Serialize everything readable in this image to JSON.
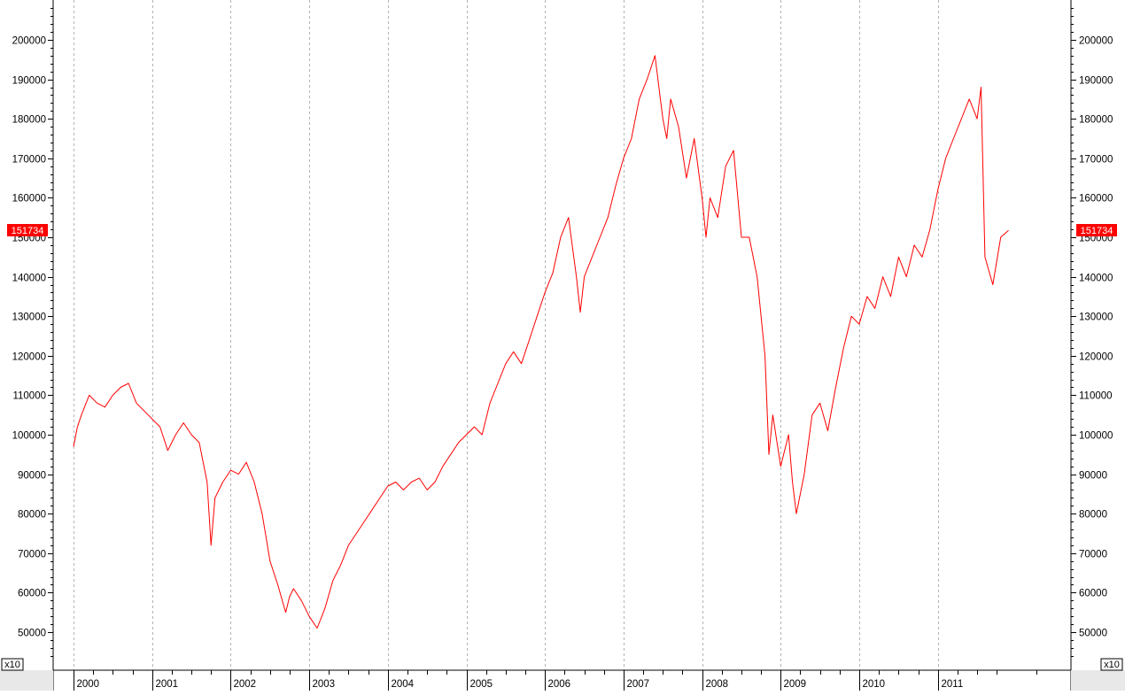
{
  "chart_data": {
    "type": "line",
    "title": "",
    "xlabel": "",
    "ylabel": "",
    "scale_badge": "x10",
    "last_value_label": "151734",
    "last_value": 151734,
    "x_tick_labels": [
      "2000",
      "2001",
      "2002",
      "2003",
      "2004",
      "2005",
      "2006",
      "2007",
      "2008",
      "2009",
      "2010",
      "2011"
    ],
    "y_tick_labels": [
      "50000",
      "60000",
      "70000",
      "80000",
      "90000",
      "100000",
      "110000",
      "120000",
      "130000",
      "140000",
      "150000",
      "160000",
      "170000",
      "180000",
      "190000",
      "200000"
    ],
    "ylim": [
      44000,
      209000
    ],
    "xlim": [
      1999.9,
      2012.5
    ],
    "grid": "vertical dashed at year boundaries",
    "colors": {
      "series": "#ff0000",
      "badge_bg": "#ff0000",
      "badge_text": "#ffffff",
      "grid": "#b4b4b4"
    },
    "series": [
      {
        "x": [
          2000.0,
          2000.05,
          2000.1,
          2000.2,
          2000.3,
          2000.4,
          2000.5,
          2000.6,
          2000.7,
          2000.8,
          2000.9,
          2001.0,
          2001.1,
          2001.2,
          2001.3,
          2001.4,
          2001.5,
          2001.6,
          2001.7,
          2001.75,
          2001.8,
          2001.9,
          2002.0,
          2002.1,
          2002.2,
          2002.3,
          2002.4,
          2002.5,
          2002.6,
          2002.7,
          2002.75,
          2002.8,
          2002.9,
          2003.0,
          2003.1,
          2003.2,
          2003.3,
          2003.4,
          2003.5,
          2003.6,
          2003.7,
          2003.8,
          2003.9,
          2004.0,
          2004.1,
          2004.2,
          2004.3,
          2004.4,
          2004.5,
          2004.6,
          2004.7,
          2004.8,
          2004.9,
          2005.0,
          2005.1,
          2005.2,
          2005.3,
          2005.4,
          2005.5,
          2005.6,
          2005.7,
          2005.8,
          2005.9,
          2006.0,
          2006.1,
          2006.2,
          2006.3,
          2006.4,
          2006.45,
          2006.5,
          2006.6,
          2006.7,
          2006.8,
          2006.9,
          2007.0,
          2007.1,
          2007.2,
          2007.3,
          2007.4,
          2007.5,
          2007.55,
          2007.6,
          2007.7,
          2007.8,
          2007.9,
          2008.0,
          2008.05,
          2008.1,
          2008.2,
          2008.3,
          2008.4,
          2008.5,
          2008.6,
          2008.7,
          2008.8,
          2008.85,
          2008.9,
          2009.0,
          2009.1,
          2009.15,
          2009.2,
          2009.3,
          2009.4,
          2009.5,
          2009.6,
          2009.7,
          2009.8,
          2009.9,
          2010.0,
          2010.1,
          2010.2,
          2010.3,
          2010.4,
          2010.5,
          2010.6,
          2010.7,
          2010.8,
          2010.9,
          2011.0,
          2011.1,
          2011.2,
          2011.3,
          2011.4,
          2011.5,
          2011.55,
          2011.6,
          2011.7,
          2011.8,
          2011.9
        ],
        "values": [
          97000,
          102000,
          105000,
          110000,
          108000,
          107000,
          110000,
          112000,
          113000,
          108000,
          106000,
          104000,
          102000,
          96000,
          100000,
          103000,
          100000,
          98000,
          88000,
          72000,
          84000,
          88000,
          91000,
          90000,
          93000,
          88000,
          80000,
          68000,
          62000,
          55000,
          59000,
          61000,
          58000,
          54000,
          51000,
          56000,
          63000,
          67000,
          72000,
          75000,
          78000,
          81000,
          84000,
          87000,
          88000,
          86000,
          88000,
          89000,
          86000,
          88000,
          92000,
          95000,
          98000,
          100000,
          102000,
          100000,
          108000,
          113000,
          118000,
          121000,
          118000,
          124000,
          130000,
          136000,
          141000,
          150000,
          155000,
          140000,
          131000,
          140000,
          145000,
          150000,
          155000,
          163000,
          170000,
          175000,
          185000,
          190000,
          196000,
          180000,
          175000,
          185000,
          178000,
          165000,
          175000,
          160000,
          150000,
          160000,
          155000,
          168000,
          172000,
          150000,
          150000,
          140000,
          120000,
          95000,
          105000,
          92000,
          100000,
          88000,
          80000,
          90000,
          105000,
          108000,
          101000,
          112000,
          122000,
          130000,
          128000,
          135000,
          132000,
          140000,
          135000,
          145000,
          140000,
          148000,
          145000,
          152000,
          162000,
          170000,
          175000,
          180000,
          185000,
          180000,
          188000,
          145000,
          138000,
          150000,
          151734
        ]
      }
    ]
  }
}
